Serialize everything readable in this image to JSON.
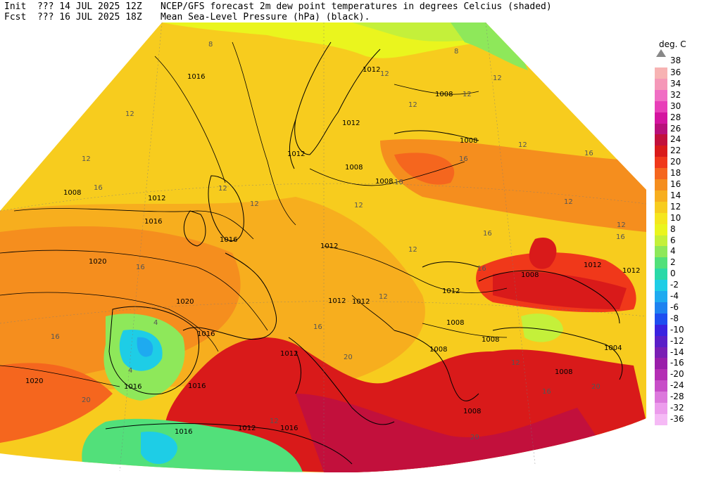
{
  "header": {
    "init_label": "Init",
    "init_value": "??? 14 JUL 2025 12Z",
    "fcst_label": "Fcst",
    "fcst_value": "??? 16 JUL 2025 18Z",
    "title_line1": "NCEP/GFS forecast 2m dew point temperatures in degrees Celcius (shaded)",
    "title_line2": "Mean Sea-Level Pressure (hPa) (black)."
  },
  "legend": {
    "unit": "deg. C",
    "arrow_label": "38",
    "levels": [
      {
        "label": "36",
        "color": "#f7b3b3"
      },
      {
        "label": "34",
        "color": "#f598b8"
      },
      {
        "label": "32",
        "color": "#f06ec4"
      },
      {
        "label": "30",
        "color": "#e83fb8"
      },
      {
        "label": "28",
        "color": "#d4149f"
      },
      {
        "label": "26",
        "color": "#b8107a"
      },
      {
        "label": "24",
        "color": "#c2103c"
      },
      {
        "label": "22",
        "color": "#d91a1a"
      },
      {
        "label": "20",
        "color": "#f0381a"
      },
      {
        "label": "18",
        "color": "#f5661e"
      },
      {
        "label": "16",
        "color": "#f58e1e"
      },
      {
        "label": "14",
        "color": "#f7ae1e"
      },
      {
        "label": "12",
        "color": "#f7cc1e"
      },
      {
        "label": "10",
        "color": "#f5e61e"
      },
      {
        "label": "8",
        "color": "#eaf51e"
      },
      {
        "label": "6",
        "color": "#c4f03a"
      },
      {
        "label": "4",
        "color": "#8ee85a"
      },
      {
        "label": "2",
        "color": "#52e07a"
      },
      {
        "label": "0",
        "color": "#2ad9a8"
      },
      {
        "label": "-2",
        "color": "#1ecde6"
      },
      {
        "label": "-4",
        "color": "#1eaaf0"
      },
      {
        "label": "-6",
        "color": "#1e82f0"
      },
      {
        "label": "-8",
        "color": "#1e4ef0"
      },
      {
        "label": "-10",
        "color": "#3a22e0"
      },
      {
        "label": "-12",
        "color": "#5a1ec8"
      },
      {
        "label": "-14",
        "color": "#7a1eb4"
      },
      {
        "label": "-16",
        "color": "#9a1eaa"
      },
      {
        "label": "-20",
        "color": "#b42eb4"
      },
      {
        "label": "-24",
        "color": "#c84ec8"
      },
      {
        "label": "-28",
        "color": "#dc78dc"
      },
      {
        "label": "-32",
        "color": "#ec9cec"
      },
      {
        "label": "-36",
        "color": "#f5baf5"
      }
    ]
  },
  "isobar_labels": [
    "1016",
    "1012",
    "1012",
    "1012",
    "1008",
    "1008",
    "1008",
    "1012",
    "1016",
    "1008",
    "1012",
    "1016",
    "1020",
    "1020",
    "1016",
    "1020",
    "1012",
    "1012",
    "1012",
    "1008",
    "1008",
    "1016",
    "1016",
    "1012",
    "1016",
    "1016",
    "1008",
    "1008",
    "1004",
    "1008",
    "1012",
    "1012",
    "1008",
    "1012",
    "1008"
  ],
  "dewpoint_labels": [
    "12",
    "12",
    "16",
    "16",
    "12",
    "12",
    "12",
    "16",
    "16",
    "12",
    "12",
    "16",
    "16",
    "12",
    "12",
    "16",
    "16",
    "16",
    "12",
    "12",
    "12",
    "20",
    "12",
    "16",
    "20",
    "4",
    "4",
    "8",
    "20",
    "12",
    "12",
    "16",
    "8",
    "12",
    "20"
  ]
}
